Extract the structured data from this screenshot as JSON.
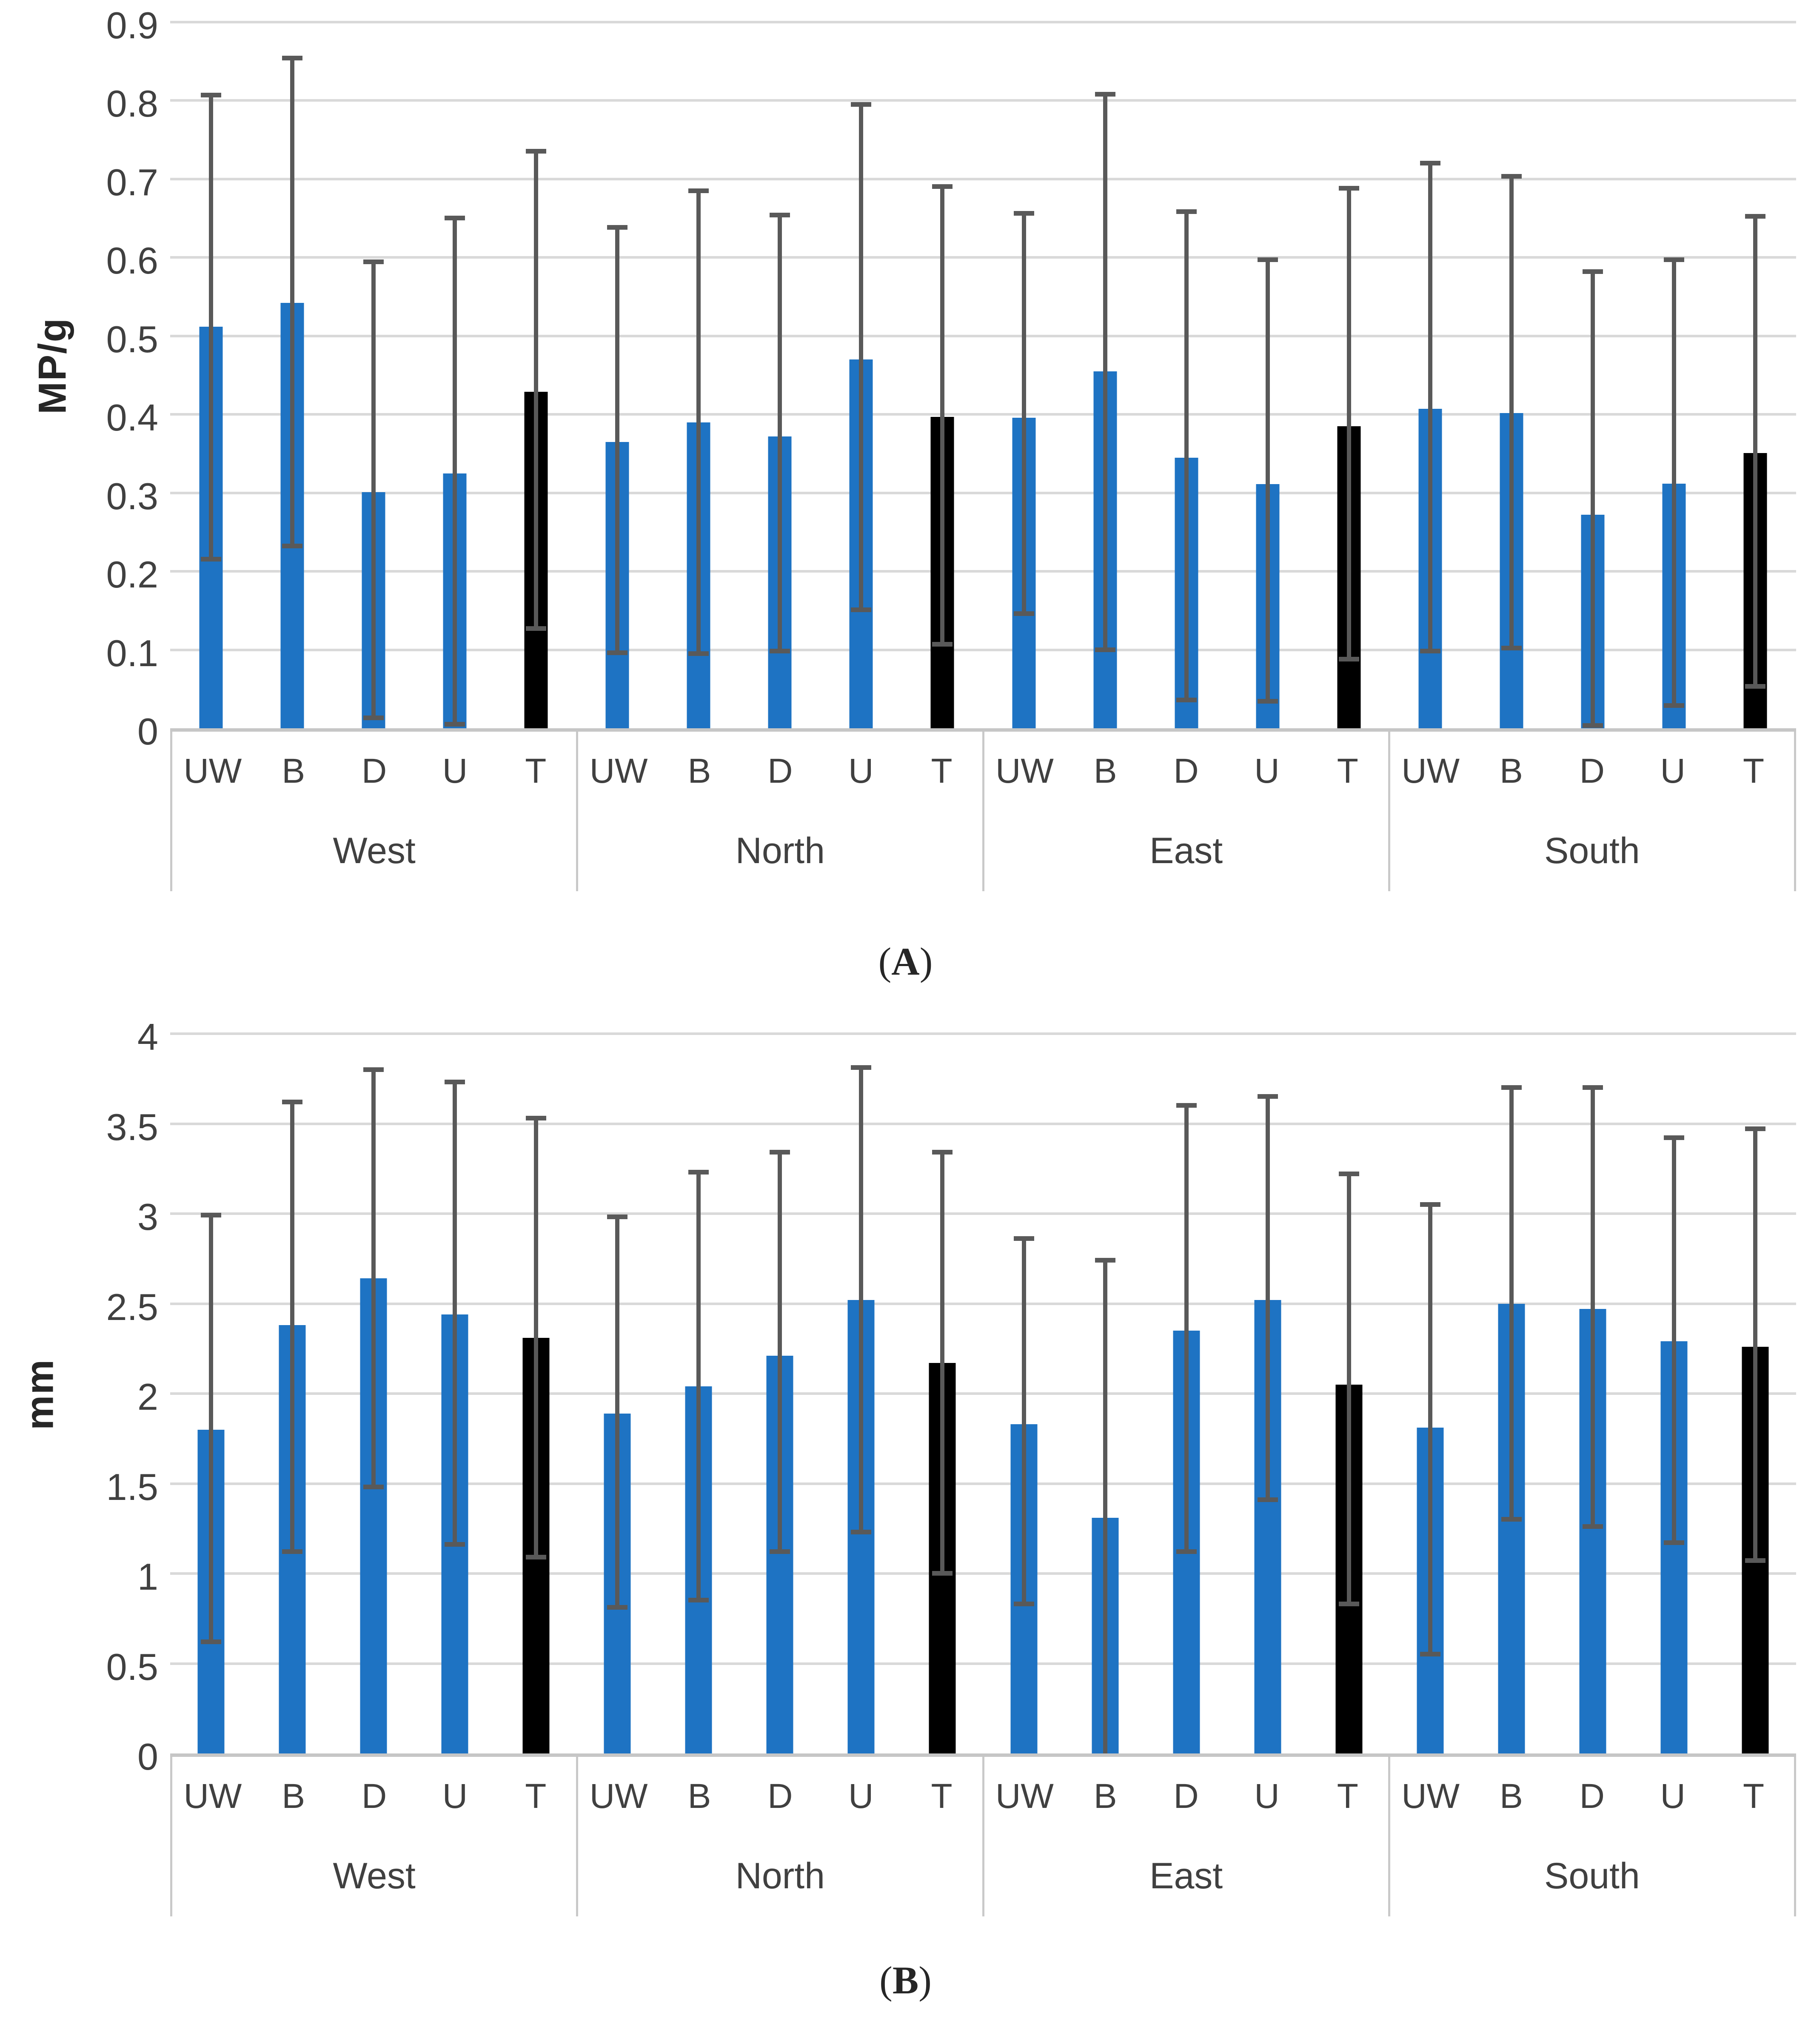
{
  "figure": {
    "captions": [
      {
        "open": "(",
        "letter": "A",
        "close": ")"
      },
      {
        "open": "(",
        "letter": "B",
        "close": ")"
      }
    ]
  },
  "colors": {
    "bar_blue": "#1E73C3",
    "bar_black": "#000000",
    "error_bar": "#595959",
    "gridline": "#D9D9D9",
    "axis_line": "#C6C6C6",
    "separator": "#C9C9C9"
  },
  "chart_data": [
    {
      "type": "bar",
      "panel": "A",
      "title": "",
      "xlabel": "",
      "ylabel": "MP/g",
      "ymin": 0,
      "ymax": 0.9,
      "grid": true,
      "legend_position": "none",
      "yticks": [
        0.9,
        0.8,
        0.7,
        0.6,
        0.5,
        0.4,
        0.3,
        0.2,
        0.1,
        0
      ],
      "ytick_labels": [
        "0.9",
        "0.8",
        "0.7",
        "0.6",
        "0.5",
        "0.4",
        "0.3",
        "0.2",
        "0.1",
        "0"
      ],
      "categories": [
        "UW",
        "B",
        "D",
        "U",
        "T"
      ],
      "groups": [
        {
          "label": "West",
          "bars": [
            {
              "cat": "UW",
              "value": 0.512,
              "err_low": 0.215,
              "err_high": 0.807,
              "color": "blue"
            },
            {
              "cat": "B",
              "value": 0.542,
              "err_low": 0.232,
              "err_high": 0.854,
              "color": "blue"
            },
            {
              "cat": "D",
              "value": 0.301,
              "err_low": 0.013,
              "err_high": 0.594,
              "color": "blue"
            },
            {
              "cat": "U",
              "value": 0.325,
              "err_low": 0.005,
              "err_high": 0.65,
              "color": "blue"
            },
            {
              "cat": "T",
              "value": 0.429,
              "err_low": 0.127,
              "err_high": 0.735,
              "color": "black"
            }
          ]
        },
        {
          "label": "North",
          "bars": [
            {
              "cat": "UW",
              "value": 0.365,
              "err_low": 0.096,
              "err_high": 0.638,
              "color": "blue"
            },
            {
              "cat": "B",
              "value": 0.39,
              "err_low": 0.095,
              "err_high": 0.685,
              "color": "blue"
            },
            {
              "cat": "D",
              "value": 0.372,
              "err_low": 0.098,
              "err_high": 0.654,
              "color": "blue"
            },
            {
              "cat": "U",
              "value": 0.47,
              "err_low": 0.151,
              "err_high": 0.795,
              "color": "blue"
            },
            {
              "cat": "T",
              "value": 0.397,
              "err_low": 0.107,
              "err_high": 0.69,
              "color": "black"
            }
          ]
        },
        {
          "label": "East",
          "bars": [
            {
              "cat": "UW",
              "value": 0.396,
              "err_low": 0.146,
              "err_high": 0.656,
              "color": "blue"
            },
            {
              "cat": "B",
              "value": 0.455,
              "err_low": 0.1,
              "err_high": 0.808,
              "color": "blue"
            },
            {
              "cat": "D",
              "value": 0.345,
              "err_low": 0.036,
              "err_high": 0.658,
              "color": "blue"
            },
            {
              "cat": "U",
              "value": 0.311,
              "err_low": 0.034,
              "err_high": 0.597,
              "color": "blue"
            },
            {
              "cat": "T",
              "value": 0.385,
              "err_low": 0.088,
              "err_high": 0.688,
              "color": "black"
            }
          ]
        },
        {
          "label": "South",
          "bars": [
            {
              "cat": "UW",
              "value": 0.407,
              "err_low": 0.098,
              "err_high": 0.72,
              "color": "blue"
            },
            {
              "cat": "B",
              "value": 0.402,
              "err_low": 0.102,
              "err_high": 0.703,
              "color": "blue"
            },
            {
              "cat": "D",
              "value": 0.272,
              "err_low": 0.003,
              "err_high": 0.582,
              "color": "blue"
            },
            {
              "cat": "U",
              "value": 0.312,
              "err_low": 0.029,
              "err_high": 0.597,
              "color": "blue"
            },
            {
              "cat": "T",
              "value": 0.351,
              "err_low": 0.053,
              "err_high": 0.652,
              "color": "black"
            }
          ]
        }
      ]
    },
    {
      "type": "bar",
      "panel": "B",
      "title": "",
      "xlabel": "",
      "ylabel": "mm",
      "ymin": 0,
      "ymax": 4,
      "grid": true,
      "legend_position": "none",
      "yticks": [
        4,
        3.5,
        3,
        2.5,
        2,
        1.5,
        1,
        0.5,
        0
      ],
      "ytick_labels": [
        "4",
        "3.5",
        "3",
        "2.5",
        "2",
        "1.5",
        "1",
        "0.5",
        "0"
      ],
      "categories": [
        "UW",
        "B",
        "D",
        "U",
        "T"
      ],
      "groups": [
        {
          "label": "West",
          "bars": [
            {
              "cat": "UW",
              "value": 1.8,
              "err_low": 0.62,
              "err_high": 2.99,
              "color": "blue"
            },
            {
              "cat": "B",
              "value": 2.38,
              "err_low": 1.12,
              "err_high": 3.62,
              "color": "blue"
            },
            {
              "cat": "D",
              "value": 2.64,
              "err_low": 1.48,
              "err_high": 3.8,
              "color": "blue"
            },
            {
              "cat": "U",
              "value": 2.44,
              "err_low": 1.16,
              "err_high": 3.73,
              "color": "blue"
            },
            {
              "cat": "T",
              "value": 2.31,
              "err_low": 1.09,
              "err_high": 3.53,
              "color": "black"
            }
          ]
        },
        {
          "label": "North",
          "bars": [
            {
              "cat": "UW",
              "value": 1.89,
              "err_low": 0.81,
              "err_high": 2.98,
              "color": "blue"
            },
            {
              "cat": "B",
              "value": 2.04,
              "err_low": 0.85,
              "err_high": 3.23,
              "color": "blue"
            },
            {
              "cat": "D",
              "value": 2.21,
              "err_low": 1.12,
              "err_high": 3.34,
              "color": "blue"
            },
            {
              "cat": "U",
              "value": 2.52,
              "err_low": 1.23,
              "err_high": 3.81,
              "color": "blue"
            },
            {
              "cat": "T",
              "value": 2.17,
              "err_low": 1.0,
              "err_high": 3.34,
              "color": "black"
            }
          ]
        },
        {
          "label": "East",
          "bars": [
            {
              "cat": "UW",
              "value": 1.83,
              "err_low": 0.83,
              "err_high": 2.86,
              "color": "blue"
            },
            {
              "cat": "B",
              "value": 1.31,
              "err_low": 0.0,
              "err_high": 2.74,
              "color": "blue"
            },
            {
              "cat": "D",
              "value": 2.35,
              "err_low": 1.12,
              "err_high": 3.6,
              "color": "blue"
            },
            {
              "cat": "U",
              "value": 2.52,
              "err_low": 1.41,
              "err_high": 3.65,
              "color": "blue"
            },
            {
              "cat": "T",
              "value": 2.05,
              "err_low": 0.83,
              "err_high": 3.22,
              "color": "black"
            }
          ]
        },
        {
          "label": "South",
          "bars": [
            {
              "cat": "UW",
              "value": 1.81,
              "err_low": 0.55,
              "err_high": 3.05,
              "color": "blue"
            },
            {
              "cat": "B",
              "value": 2.5,
              "err_low": 1.3,
              "err_high": 3.7,
              "color": "blue"
            },
            {
              "cat": "D",
              "value": 2.47,
              "err_low": 1.26,
              "err_high": 3.7,
              "color": "blue"
            },
            {
              "cat": "U",
              "value": 2.29,
              "err_low": 1.17,
              "err_high": 3.42,
              "color": "blue"
            },
            {
              "cat": "T",
              "value": 2.26,
              "err_low": 1.07,
              "err_high": 3.47,
              "color": "black"
            }
          ]
        }
      ]
    }
  ]
}
